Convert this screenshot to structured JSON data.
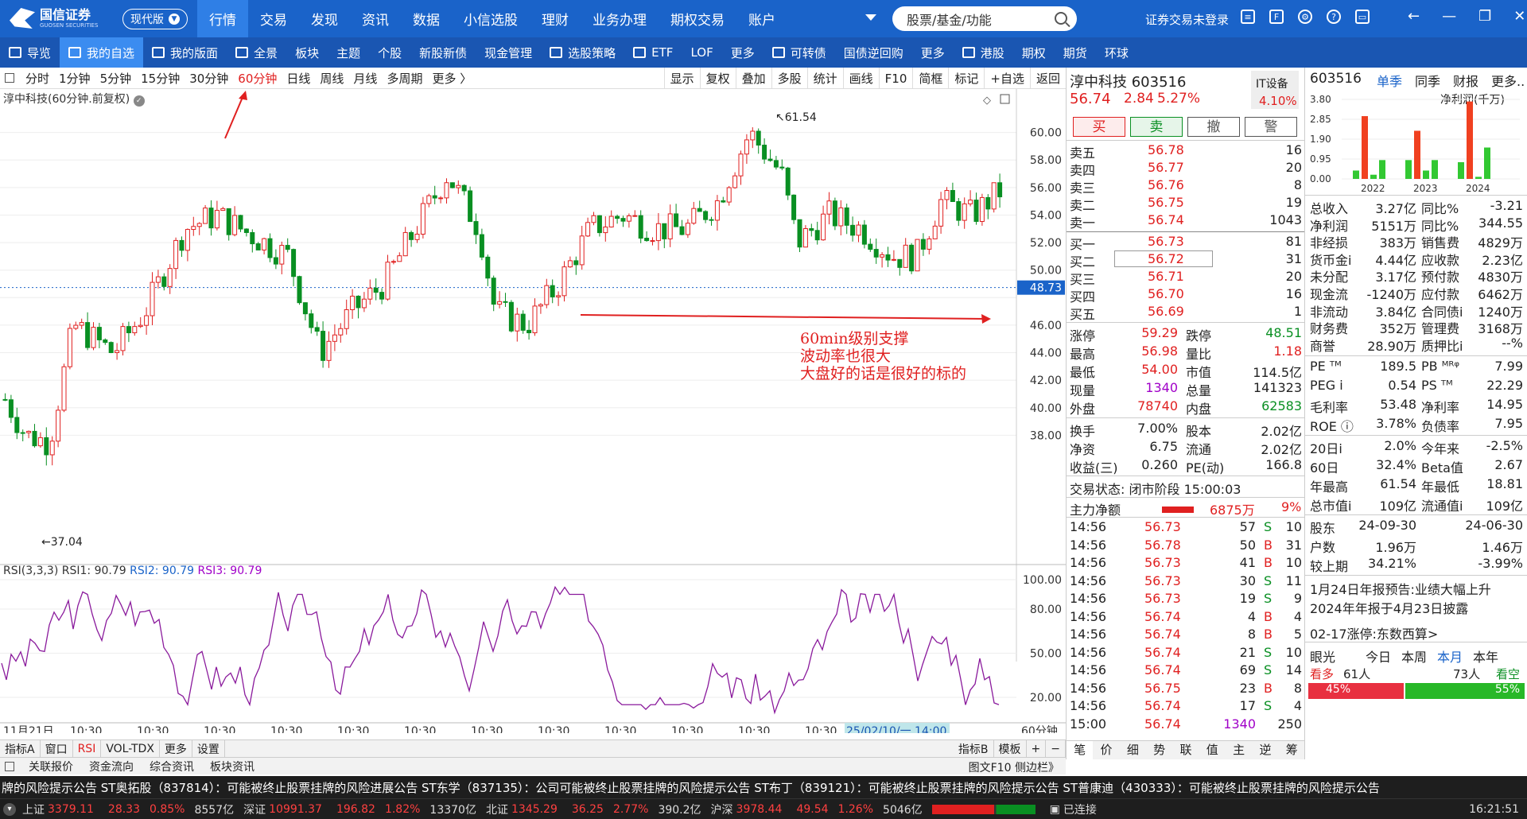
{
  "app": {
    "brand": "国信证券",
    "brand_sub": "GUOSEN SECURITIES",
    "mode": "现代版",
    "search_placeholder": "股票/基金/功能",
    "login": "证券交易未登录"
  },
  "topnav": [
    "行情",
    "交易",
    "发现",
    "资讯",
    "数据",
    "小信选股",
    "理财",
    "业务办理",
    "期权交易",
    "账户"
  ],
  "subnav": [
    {
      "label": "导览",
      "icon": "compass-icon"
    },
    {
      "label": "我的自选",
      "icon": "heart-icon",
      "active": true
    },
    {
      "label": "我的版面",
      "icon": "layout-icon"
    },
    {
      "label": "全景",
      "icon": "panorama-icon"
    },
    {
      "label": "板块"
    },
    {
      "label": "主题"
    },
    {
      "label": "个股"
    },
    {
      "label": "新股新债"
    },
    {
      "label": "现金管理"
    },
    {
      "label": "选股策略",
      "icon": "strategy-icon"
    },
    {
      "label": "ETF",
      "icon": "etf-icon"
    },
    {
      "label": "LOF"
    },
    {
      "label": "更多"
    },
    {
      "label": "可转债",
      "icon": "bond-icon"
    },
    {
      "label": "国债逆回购"
    },
    {
      "label": "更多"
    },
    {
      "label": "港股",
      "icon": "hk-icon"
    },
    {
      "label": "期权"
    },
    {
      "label": "期货"
    },
    {
      "label": "环球"
    }
  ],
  "periods": [
    "分时",
    "1分钟",
    "5分钟",
    "15分钟",
    "30分钟",
    "60分钟",
    "日线",
    "周线",
    "月线",
    "多周期",
    "更多 〉"
  ],
  "active_period": "60分钟",
  "chart_tools": [
    "显示",
    "复权",
    "叠加",
    "多股",
    "统计",
    "画线",
    "F10",
    "简框",
    "标记",
    "+自选",
    "返回"
  ],
  "chart_title": "淳中科技(60分钟.前复权)",
  "annotation": [
    "60min级别支撑",
    "波动率也很大",
    "大盘好的话是很好的标的"
  ],
  "price_axis": [
    "60.00",
    "58.00",
    "56.00",
    "54.00",
    "52.00",
    "50.00",
    "48.73",
    "46.00",
    "44.00",
    "42.00",
    "40.00",
    "38.00"
  ],
  "high_label": "61.54",
  "low_label": "37.04",
  "rsi": {
    "title": "RSI(3,3,3)",
    "rsi1": "RSI1: 90.79",
    "rsi2": "RSI2: 90.79",
    "rsi3": "RSI3: 90.79",
    "axis": [
      "100.00",
      "80.00",
      "50.00",
      "20.00"
    ]
  },
  "time_axis": [
    "11月21日",
    "10:30",
    "10:30",
    "10:30",
    "10:30",
    "10:30",
    "10:30",
    "10:30",
    "10:30",
    "10:30",
    "10:30",
    "10:30",
    "10:30",
    "10:30"
  ],
  "cursor_time": "25/02/10/一 14:00",
  "period_label": "60分钟",
  "bottom_tabs": [
    "指标A",
    "窗口",
    "RSI",
    "VOL-TDX",
    "更多",
    "设置"
  ],
  "bottom_right": [
    "指标B",
    "模板",
    "+",
    "−"
  ],
  "info_tabs": [
    "关联报价",
    "资金流向",
    "综合资讯",
    "板块资讯"
  ],
  "info_right": "图文F10 侧边栏》",
  "quote": {
    "name": "淳中科技 603516",
    "price": "56.74",
    "change": "2.84",
    "pct": "5.27%",
    "sector": "IT设备",
    "sector_pct": "4.10%",
    "buttons": [
      "买",
      "卖",
      "撤",
      "警"
    ],
    "asks": [
      [
        "卖五",
        "56.78",
        "16"
      ],
      [
        "卖四",
        "56.77",
        "20"
      ],
      [
        "卖三",
        "56.76",
        "8"
      ],
      [
        "卖二",
        "56.75",
        "19"
      ],
      [
        "卖一",
        "56.74",
        "1043"
      ]
    ],
    "bids": [
      [
        "买一",
        "56.73",
        "81"
      ],
      [
        "买二",
        "56.72",
        "31"
      ],
      [
        "买三",
        "56.71",
        "20"
      ],
      [
        "买四",
        "56.70",
        "16"
      ],
      [
        "买五",
        "56.69",
        "1"
      ]
    ],
    "stats": [
      [
        "涨停",
        "59.29",
        "跌停",
        "48.51"
      ],
      [
        "最高",
        "56.98",
        "量比",
        "1.18"
      ],
      [
        "最低",
        "54.00",
        "市值",
        "114.5亿"
      ],
      [
        "现量",
        "1340",
        "总量",
        "141323"
      ],
      [
        "外盘",
        "78740",
        "内盘",
        "62583"
      ]
    ],
    "stats2": [
      [
        "换手",
        "7.00%",
        "股本",
        "2.02亿"
      ],
      [
        "净资",
        "6.75",
        "流通",
        "2.02亿"
      ],
      [
        "收益(三)",
        "0.260",
        "PE(动)",
        "166.8"
      ]
    ],
    "trade_state": "交易状态: 闭市阶段 15:00:03",
    "main_flow": [
      "主力净额",
      "6875万",
      "9%"
    ],
    "ticks": [
      [
        "14:56",
        "56.73",
        "57",
        "S",
        "10"
      ],
      [
        "14:56",
        "56.78",
        "50",
        "B",
        "31"
      ],
      [
        "14:56",
        "56.73",
        "41",
        "B",
        "10"
      ],
      [
        "14:56",
        "56.73",
        "30",
        "S",
        "11"
      ],
      [
        "14:56",
        "56.73",
        "19",
        "S",
        "9"
      ],
      [
        "14:56",
        "56.74",
        "4",
        "B",
        "4"
      ],
      [
        "14:56",
        "56.74",
        "8",
        "B",
        "5"
      ],
      [
        "14:56",
        "56.74",
        "21",
        "S",
        "10"
      ],
      [
        "14:56",
        "56.74",
        "69",
        "S",
        "14"
      ],
      [
        "14:56",
        "56.75",
        "23",
        "B",
        "8"
      ],
      [
        "14:56",
        "56.74",
        "17",
        "S",
        "4"
      ],
      [
        "15:00",
        "56.74",
        "1340",
        "",
        "250"
      ]
    ],
    "tick_tabs": [
      "笔",
      "价",
      "细",
      "势",
      "联",
      "值",
      "主",
      "逆",
      "筹"
    ]
  },
  "fin": {
    "code": "603516",
    "tabs": [
      "单季",
      "同季",
      "财报",
      "更多.."
    ],
    "chart_title": "净利润(千万)",
    "yaxis": [
      "3.80",
      "2.85",
      "1.90",
      "0.95",
      "0.00"
    ],
    "years": [
      "2022",
      "2023",
      "2024"
    ],
    "bars": [
      [
        0.4,
        3.0,
        0.2,
        0.9
      ],
      [
        0.9,
        2.3,
        0.4,
        0.9
      ],
      [
        0.8,
        3.7,
        0.1,
        1.5
      ]
    ],
    "rows": [
      [
        "总收入",
        "3.27亿",
        "同比%",
        "-3.21"
      ],
      [
        "净利润",
        "5151万",
        "同比%",
        "344.55"
      ],
      [
        "非经损",
        "383万",
        "销售费",
        "4829万"
      ],
      [
        "货币金i",
        "4.44亿",
        "应收款",
        "2.23亿"
      ],
      [
        "未分配",
        "3.17亿",
        "预付款",
        "4830万"
      ],
      [
        "现金流",
        "-1240万",
        "应付款",
        "6462万"
      ],
      [
        "非流动",
        "3.84亿",
        "合同债i",
        "1240万"
      ],
      [
        "财务费",
        "352万",
        "管理费",
        "3168万"
      ],
      [
        "商誉",
        "28.90万",
        "质押比i",
        "--%"
      ]
    ],
    "rows2": [
      [
        "PE ᵀᴹ",
        "189.5",
        "PB ᴹᴿᵠ",
        "7.99"
      ],
      [
        "PEG i",
        "0.54",
        "PS ᵀᴹ",
        "22.29"
      ],
      [
        "毛利率",
        "53.48",
        "净利率",
        "14.95"
      ],
      [
        "ROE ⓘ",
        "3.78%",
        "负债率",
        "7.95"
      ]
    ],
    "rows3": [
      [
        "20日i",
        "2.0%",
        "今年来",
        "-2.5%"
      ],
      [
        "60日",
        "32.4%",
        "Beta值",
        "2.67"
      ],
      [
        "年最高",
        "61.54",
        "年最低",
        "18.81"
      ],
      [
        "总市值i",
        "109亿",
        "流通值i",
        "109亿"
      ]
    ],
    "rows4": [
      [
        "股东",
        "24-09-30",
        "",
        "24-06-30"
      ],
      [
        "户数",
        "1.96万",
        "",
        "1.46万"
      ],
      [
        "较上期",
        "34.21%",
        "",
        "-3.99%"
      ]
    ],
    "news": [
      "1月24日年报预告:业绩大幅上升",
      "2024年年报于4月23日披露",
      "02-17涨停:东数西算>"
    ],
    "view_tabs": [
      "眼光",
      "今日",
      "本周",
      "本月",
      "本年"
    ],
    "sentiment": [
      "看多",
      "61人",
      "73人",
      "看空"
    ],
    "sentiment_pct": [
      "45%",
      "55%"
    ]
  },
  "ticker": "牌的风险提示公告   ST奥拓股（837814）：可能被终止股票挂牌的风险进展公告   ST东学（837135）：公司可能被终止股票挂牌的风险提示公告   ST布丁（839121）：可能被终止股票挂牌的风险提示公告   ST普康迪（430333）：可能被终止股票挂牌的风险提示公告",
  "status": {
    "idx": [
      [
        "上证",
        "3379.11",
        "28.33",
        "0.85%",
        "8557亿"
      ],
      [
        "深证",
        "10991.37",
        "196.82",
        "1.82%",
        "13370亿"
      ],
      [
        "北证",
        "1345.29",
        "36.25",
        "2.77%",
        "390.2亿"
      ],
      [
        "沪深",
        "3978.44",
        "49.54",
        "1.26%",
        "5046亿"
      ]
    ],
    "conn": "已连接",
    "time": "16:21:51"
  },
  "colors": {
    "up": "#e02020",
    "down": "#098f22",
    "brand": "#1a63c9",
    "rsi": "#8a1a9c"
  }
}
